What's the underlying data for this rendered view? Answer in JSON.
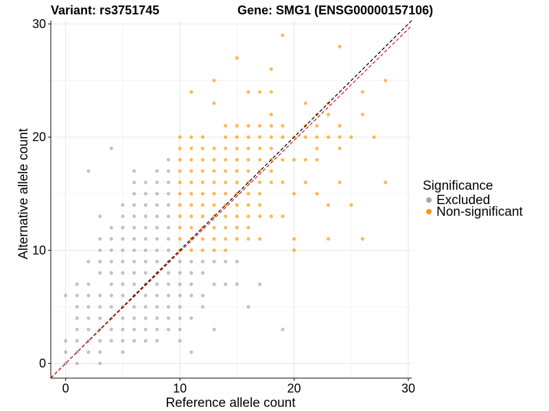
{
  "chart_data": {
    "type": "scatter",
    "title_left": "Variant: rs3751745",
    "title_right": "Gene: SMG1 (ENSG00000157106)",
    "xlabel": "Reference allele count",
    "ylabel": "Alternative allele count",
    "xlim": [
      -1.3,
      30.3
    ],
    "ylim": [
      -1.3,
      30.3
    ],
    "xticks": [
      0,
      10,
      20,
      30
    ],
    "yticks": [
      0,
      10,
      20,
      30
    ],
    "grid": true,
    "reference_lines": [
      {
        "name": "identity",
        "slope": 1,
        "intercept": 0,
        "color": "#000000",
        "dash": "dashed"
      },
      {
        "name": "fit",
        "slope": 0.985,
        "intercept": 0,
        "color": "#e41a1c",
        "dash": "dashed"
      }
    ],
    "legend": {
      "title": "Significance",
      "position": "right",
      "entries": [
        {
          "label": "Excluded",
          "color": "#a6a6a6"
        },
        {
          "label": "Non-significant",
          "color": "#ff9900"
        }
      ]
    },
    "series": [
      {
        "name": "Excluded",
        "color": "#a6a6a6",
        "points": [
          [
            0,
            0
          ],
          [
            0,
            1
          ],
          [
            0,
            2
          ],
          [
            0,
            6
          ],
          [
            1,
            0
          ],
          [
            1,
            1
          ],
          [
            1,
            2
          ],
          [
            1,
            3
          ],
          [
            1,
            4
          ],
          [
            1,
            5
          ],
          [
            1,
            6
          ],
          [
            1,
            7
          ],
          [
            2,
            1
          ],
          [
            2,
            2
          ],
          [
            2,
            3
          ],
          [
            2,
            4
          ],
          [
            2,
            5
          ],
          [
            2,
            6
          ],
          [
            2,
            7
          ],
          [
            2,
            9
          ],
          [
            2,
            17
          ],
          [
            3,
            0
          ],
          [
            3,
            1
          ],
          [
            3,
            2
          ],
          [
            3,
            3
          ],
          [
            3,
            4
          ],
          [
            3,
            5
          ],
          [
            3,
            6
          ],
          [
            3,
            8
          ],
          [
            3,
            9
          ],
          [
            3,
            10
          ],
          [
            3,
            11
          ],
          [
            3,
            13
          ],
          [
            4,
            2
          ],
          [
            4,
            3
          ],
          [
            4,
            4
          ],
          [
            4,
            5
          ],
          [
            4,
            6
          ],
          [
            4,
            7
          ],
          [
            4,
            8
          ],
          [
            4,
            9
          ],
          [
            4,
            10
          ],
          [
            4,
            11
          ],
          [
            4,
            12
          ],
          [
            4,
            19
          ],
          [
            5,
            1
          ],
          [
            5,
            2
          ],
          [
            5,
            3
          ],
          [
            5,
            4
          ],
          [
            5,
            5
          ],
          [
            5,
            6
          ],
          [
            5,
            7
          ],
          [
            5,
            8
          ],
          [
            5,
            9
          ],
          [
            5,
            10
          ],
          [
            5,
            11
          ],
          [
            5,
            12
          ],
          [
            5,
            13
          ],
          [
            5,
            14
          ],
          [
            6,
            2
          ],
          [
            6,
            3
          ],
          [
            6,
            4
          ],
          [
            6,
            5
          ],
          [
            6,
            6
          ],
          [
            6,
            7
          ],
          [
            6,
            8
          ],
          [
            6,
            9
          ],
          [
            6,
            10
          ],
          [
            6,
            11
          ],
          [
            6,
            12
          ],
          [
            6,
            13
          ],
          [
            6,
            14
          ],
          [
            6,
            15
          ],
          [
            6,
            16
          ],
          [
            6,
            17
          ],
          [
            7,
            2
          ],
          [
            7,
            3
          ],
          [
            7,
            4
          ],
          [
            7,
            5
          ],
          [
            7,
            6
          ],
          [
            7,
            7
          ],
          [
            7,
            8
          ],
          [
            7,
            9
          ],
          [
            7,
            10
          ],
          [
            7,
            11
          ],
          [
            7,
            12
          ],
          [
            7,
            13
          ],
          [
            7,
            14
          ],
          [
            7,
            15
          ],
          [
            7,
            16
          ],
          [
            8,
            2
          ],
          [
            8,
            3
          ],
          [
            8,
            4
          ],
          [
            8,
            5
          ],
          [
            8,
            6
          ],
          [
            8,
            7
          ],
          [
            8,
            8
          ],
          [
            8,
            9
          ],
          [
            8,
            10
          ],
          [
            8,
            11
          ],
          [
            8,
            12
          ],
          [
            8,
            13
          ],
          [
            8,
            14
          ],
          [
            8,
            15
          ],
          [
            8,
            16
          ],
          [
            8,
            17
          ],
          [
            9,
            3
          ],
          [
            9,
            4
          ],
          [
            9,
            5
          ],
          [
            9,
            6
          ],
          [
            9,
            7
          ],
          [
            9,
            8
          ],
          [
            9,
            9
          ],
          [
            9,
            10
          ],
          [
            9,
            11
          ],
          [
            9,
            12
          ],
          [
            9,
            13
          ],
          [
            9,
            14
          ],
          [
            9,
            15
          ],
          [
            9,
            16
          ],
          [
            9,
            17
          ],
          [
            9,
            18
          ],
          [
            10,
            2
          ],
          [
            10,
            3
          ],
          [
            10,
            4
          ],
          [
            10,
            5
          ],
          [
            10,
            6
          ],
          [
            10,
            7
          ],
          [
            10,
            8
          ],
          [
            10,
            9
          ],
          [
            11,
            1
          ],
          [
            11,
            4
          ],
          [
            11,
            6
          ],
          [
            11,
            7
          ],
          [
            11,
            8
          ],
          [
            11,
            9
          ],
          [
            12,
            5
          ],
          [
            12,
            6
          ],
          [
            12,
            8
          ],
          [
            12,
            9
          ],
          [
            13,
            3
          ],
          [
            13,
            7
          ],
          [
            13,
            9
          ],
          [
            14,
            7
          ],
          [
            14,
            9
          ],
          [
            15,
            7
          ],
          [
            15,
            9
          ],
          [
            16,
            5
          ],
          [
            17,
            7
          ],
          [
            19,
            3
          ]
        ]
      },
      {
        "name": "Non-significant",
        "color": "#ff9900",
        "points": [
          [
            10,
            10
          ],
          [
            10,
            11
          ],
          [
            10,
            12
          ],
          [
            10,
            13
          ],
          [
            10,
            14
          ],
          [
            10,
            15
          ],
          [
            10,
            16
          ],
          [
            10,
            17
          ],
          [
            10,
            18
          ],
          [
            10,
            19
          ],
          [
            10,
            20
          ],
          [
            11,
            10
          ],
          [
            11,
            11
          ],
          [
            11,
            12
          ],
          [
            11,
            13
          ],
          [
            11,
            14
          ],
          [
            11,
            15
          ],
          [
            11,
            16
          ],
          [
            11,
            17
          ],
          [
            11,
            18
          ],
          [
            11,
            19
          ],
          [
            11,
            20
          ],
          [
            11,
            24
          ],
          [
            12,
            10
          ],
          [
            12,
            11
          ],
          [
            12,
            12
          ],
          [
            12,
            13
          ],
          [
            12,
            14
          ],
          [
            12,
            15
          ],
          [
            12,
            16
          ],
          [
            12,
            17
          ],
          [
            12,
            18
          ],
          [
            12,
            19
          ],
          [
            12,
            20
          ],
          [
            13,
            10
          ],
          [
            13,
            11
          ],
          [
            13,
            12
          ],
          [
            13,
            13
          ],
          [
            13,
            14
          ],
          [
            13,
            15
          ],
          [
            13,
            16
          ],
          [
            13,
            17
          ],
          [
            13,
            18
          ],
          [
            13,
            19
          ],
          [
            13,
            23
          ],
          [
            13,
            25
          ],
          [
            14,
            10
          ],
          [
            14,
            11
          ],
          [
            14,
            12
          ],
          [
            14,
            13
          ],
          [
            14,
            14
          ],
          [
            14,
            15
          ],
          [
            14,
            16
          ],
          [
            14,
            17
          ],
          [
            14,
            18
          ],
          [
            14,
            19
          ],
          [
            14,
            20
          ],
          [
            14,
            21
          ],
          [
            15,
            11
          ],
          [
            15,
            12
          ],
          [
            15,
            13
          ],
          [
            15,
            14
          ],
          [
            15,
            15
          ],
          [
            15,
            16
          ],
          [
            15,
            17
          ],
          [
            15,
            18
          ],
          [
            15,
            19
          ],
          [
            15,
            20
          ],
          [
            15,
            21
          ],
          [
            15,
            27
          ],
          [
            16,
            11
          ],
          [
            16,
            12
          ],
          [
            16,
            13
          ],
          [
            16,
            14
          ],
          [
            16,
            15
          ],
          [
            16,
            16
          ],
          [
            16,
            17
          ],
          [
            16,
            18
          ],
          [
            16,
            19
          ],
          [
            16,
            20
          ],
          [
            16,
            21
          ],
          [
            16,
            24
          ],
          [
            17,
            11
          ],
          [
            17,
            13
          ],
          [
            17,
            14
          ],
          [
            17,
            15
          ],
          [
            17,
            16
          ],
          [
            17,
            17
          ],
          [
            17,
            18
          ],
          [
            17,
            19
          ],
          [
            17,
            20
          ],
          [
            17,
            21
          ],
          [
            17,
            24
          ],
          [
            18,
            13
          ],
          [
            18,
            16
          ],
          [
            18,
            17
          ],
          [
            18,
            18
          ],
          [
            18,
            19
          ],
          [
            18,
            20
          ],
          [
            18,
            21
          ],
          [
            18,
            22
          ],
          [
            18,
            24
          ],
          [
            18,
            26
          ],
          [
            19,
            13
          ],
          [
            19,
            16
          ],
          [
            19,
            18
          ],
          [
            19,
            20
          ],
          [
            19,
            21
          ],
          [
            19,
            29
          ],
          [
            20,
            10
          ],
          [
            20,
            11
          ],
          [
            20,
            15
          ],
          [
            20,
            18
          ],
          [
            20,
            20
          ],
          [
            21,
            16
          ],
          [
            21,
            18
          ],
          [
            21,
            20
          ],
          [
            21,
            21
          ],
          [
            21,
            23
          ],
          [
            22,
            15
          ],
          [
            22,
            18
          ],
          [
            22,
            19
          ],
          [
            22,
            20
          ],
          [
            22,
            21
          ],
          [
            22,
            22
          ],
          [
            23,
            11
          ],
          [
            23,
            14
          ],
          [
            23,
            20
          ],
          [
            23,
            22
          ],
          [
            23,
            23
          ],
          [
            24,
            16
          ],
          [
            24,
            19
          ],
          [
            24,
            20
          ],
          [
            24,
            21
          ],
          [
            24,
            28
          ],
          [
            25,
            14
          ],
          [
            25,
            20
          ],
          [
            26,
            11
          ],
          [
            26,
            22
          ],
          [
            26,
            24
          ],
          [
            27,
            20
          ],
          [
            28,
            16
          ],
          [
            28,
            25
          ]
        ]
      }
    ]
  }
}
